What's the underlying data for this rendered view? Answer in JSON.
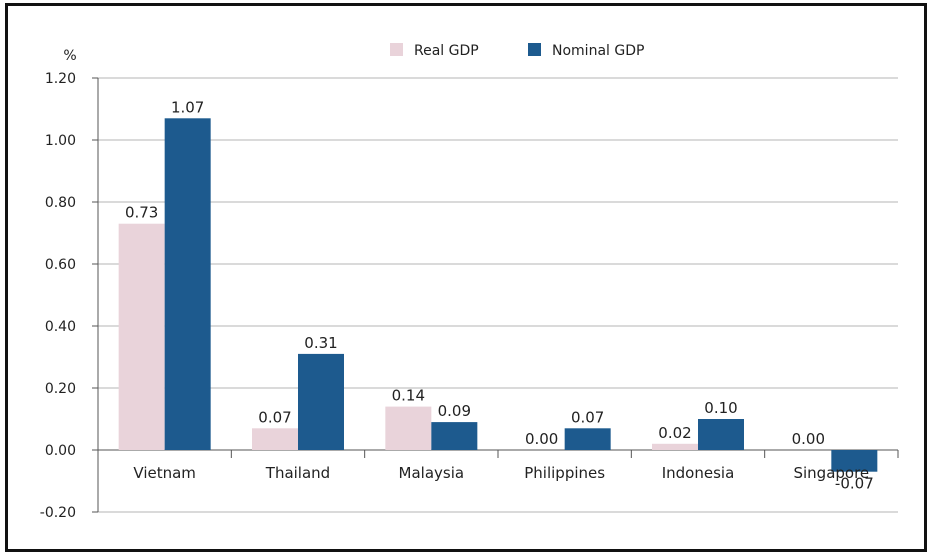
{
  "chart_data": {
    "type": "bar",
    "unit_label": "%",
    "categories": [
      "Vietnam",
      "Thailand",
      "Malaysia",
      "Philippines",
      "Indonesia",
      "Singapore"
    ],
    "series": [
      {
        "name": "Real GDP",
        "color": "#e9d3da",
        "values": [
          0.73,
          0.07,
          0.14,
          0.0,
          0.02,
          0.0
        ],
        "labels": [
          "0.73",
          "0.07",
          "0.14",
          "0.00",
          "0.02",
          "0.00"
        ]
      },
      {
        "name": "Nominal GDP",
        "color": "#1d5a8e",
        "values": [
          1.07,
          0.31,
          0.09,
          0.07,
          0.1,
          -0.07
        ],
        "labels": [
          "1.07",
          "0.31",
          "0.09",
          "0.07",
          "0.10",
          "-0.07"
        ]
      }
    ],
    "ylim": [
      -0.2,
      1.2
    ],
    "yticks": [
      -0.2,
      0.0,
      0.2,
      0.4,
      0.6,
      0.8,
      1.0,
      1.2
    ],
    "ytick_labels": [
      "-0.20",
      "0.00",
      "0.20",
      "0.40",
      "0.60",
      "0.80",
      "1.00",
      "1.20"
    ],
    "grid": true,
    "legend_position": "top-center"
  }
}
